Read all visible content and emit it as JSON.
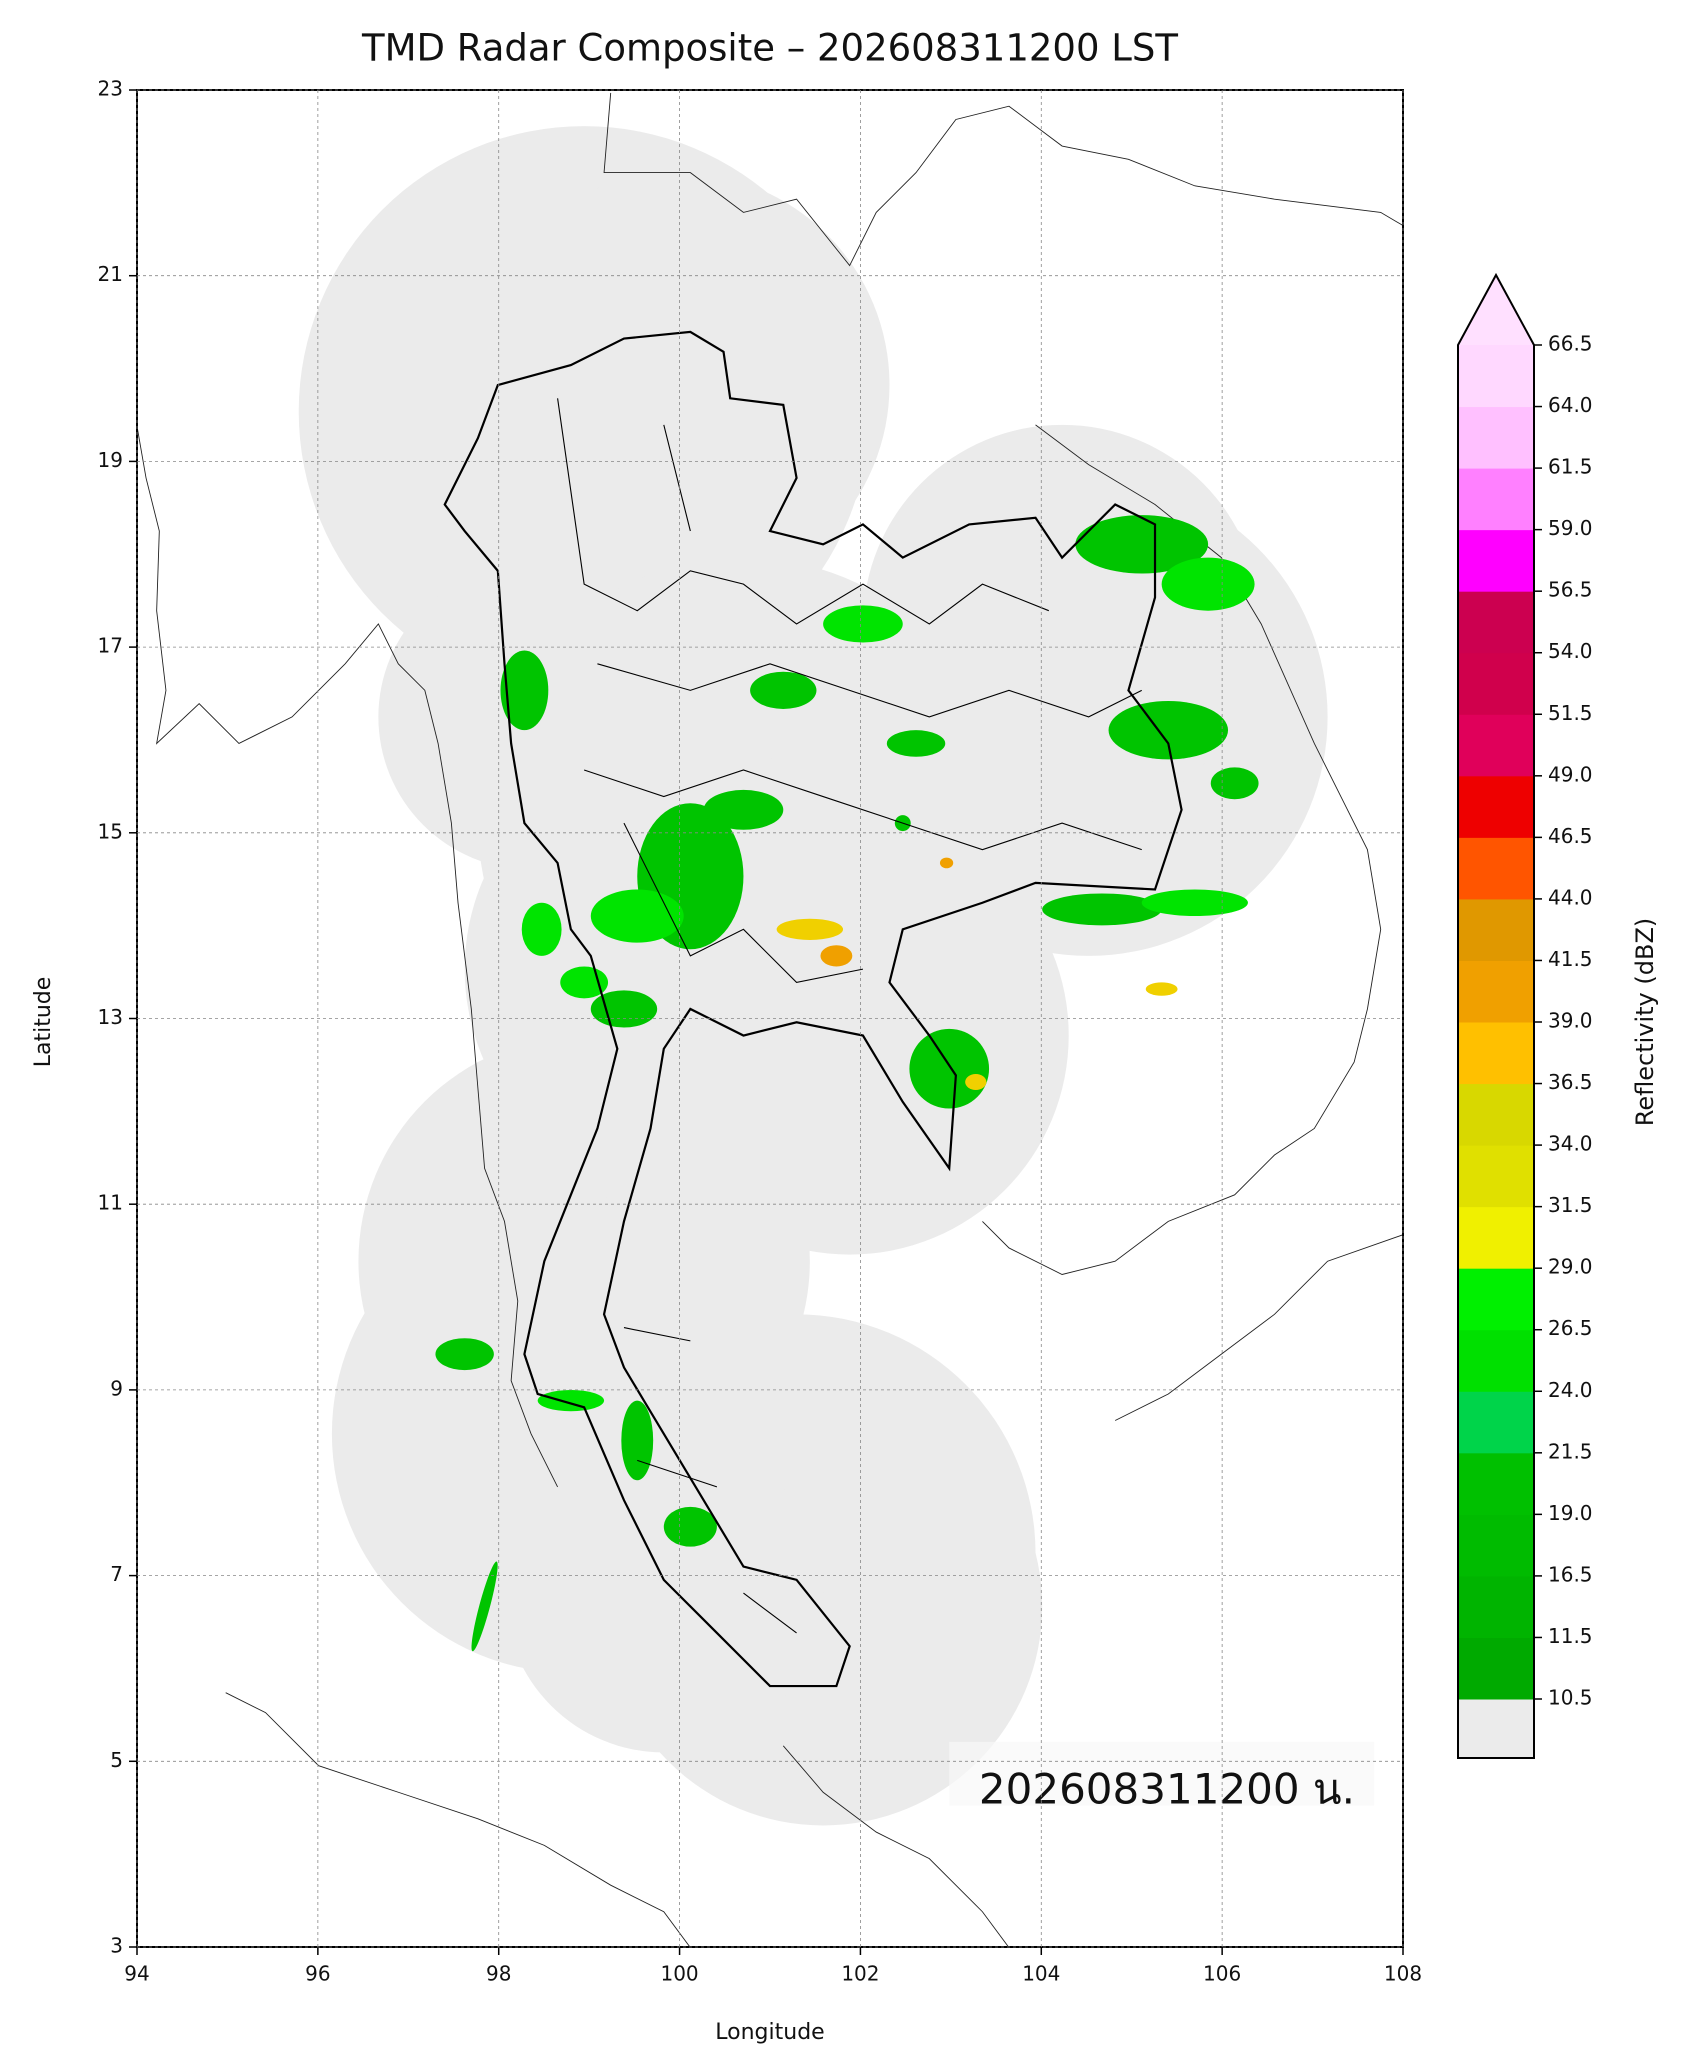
{
  "map": {
    "title": "TMD Radar Composite – 202608311200 LST",
    "xlabel": "Longitude",
    "ylabel": "Latitude",
    "xlim": [
      94,
      108
    ],
    "ylim": [
      3,
      23
    ],
    "xticks": [
      94,
      96,
      98,
      100,
      102,
      104,
      106,
      108
    ],
    "yticks": [
      3,
      5,
      7,
      9,
      11,
      13,
      15,
      17,
      19,
      21,
      23
    ],
    "grid": true,
    "annotation": "202608311200 น."
  },
  "colorbar": {
    "label": "Reflectivity (dBZ)",
    "ticks": [
      10.5,
      11.5,
      16.5,
      {
        "value": 19,
        "label": "19.0"
      },
      21.5,
      {
        "value": 24,
        "label": "24.0"
      },
      26.5,
      {
        "value": 29,
        "label": "29.0"
      },
      31.5,
      {
        "value": 34,
        "label": "34.0"
      },
      36.5,
      {
        "value": 39,
        "label": "39.0"
      },
      41.5,
      {
        "value": 44,
        "label": "44.0"
      },
      46.5,
      {
        "value": 49,
        "label": "49.0"
      },
      51.5,
      {
        "value": 54,
        "label": "54.0"
      },
      56.5,
      {
        "value": 59,
        "label": "59.0"
      },
      61.5,
      {
        "value": 64,
        "label": "64.0"
      },
      66.5
    ],
    "colors": [
      "#00aa00",
      "#00b400",
      "#00bb00",
      "#00c000",
      "#00d44a",
      "#00e000",
      "#00f000",
      "#f0f000",
      "#e0e000",
      "#d8d800",
      "#ffc000",
      "#f0a000",
      "#e09800",
      "#ff5500",
      "#ee0000",
      "#e0005a",
      "#d0004c",
      "#cc0050",
      "#ff00ff",
      "#ff80ff",
      "#ffc0ff",
      "#ffd8ff"
    ],
    "under_color": "#ebebeb",
    "over_color": "#ffe0ff"
  }
}
